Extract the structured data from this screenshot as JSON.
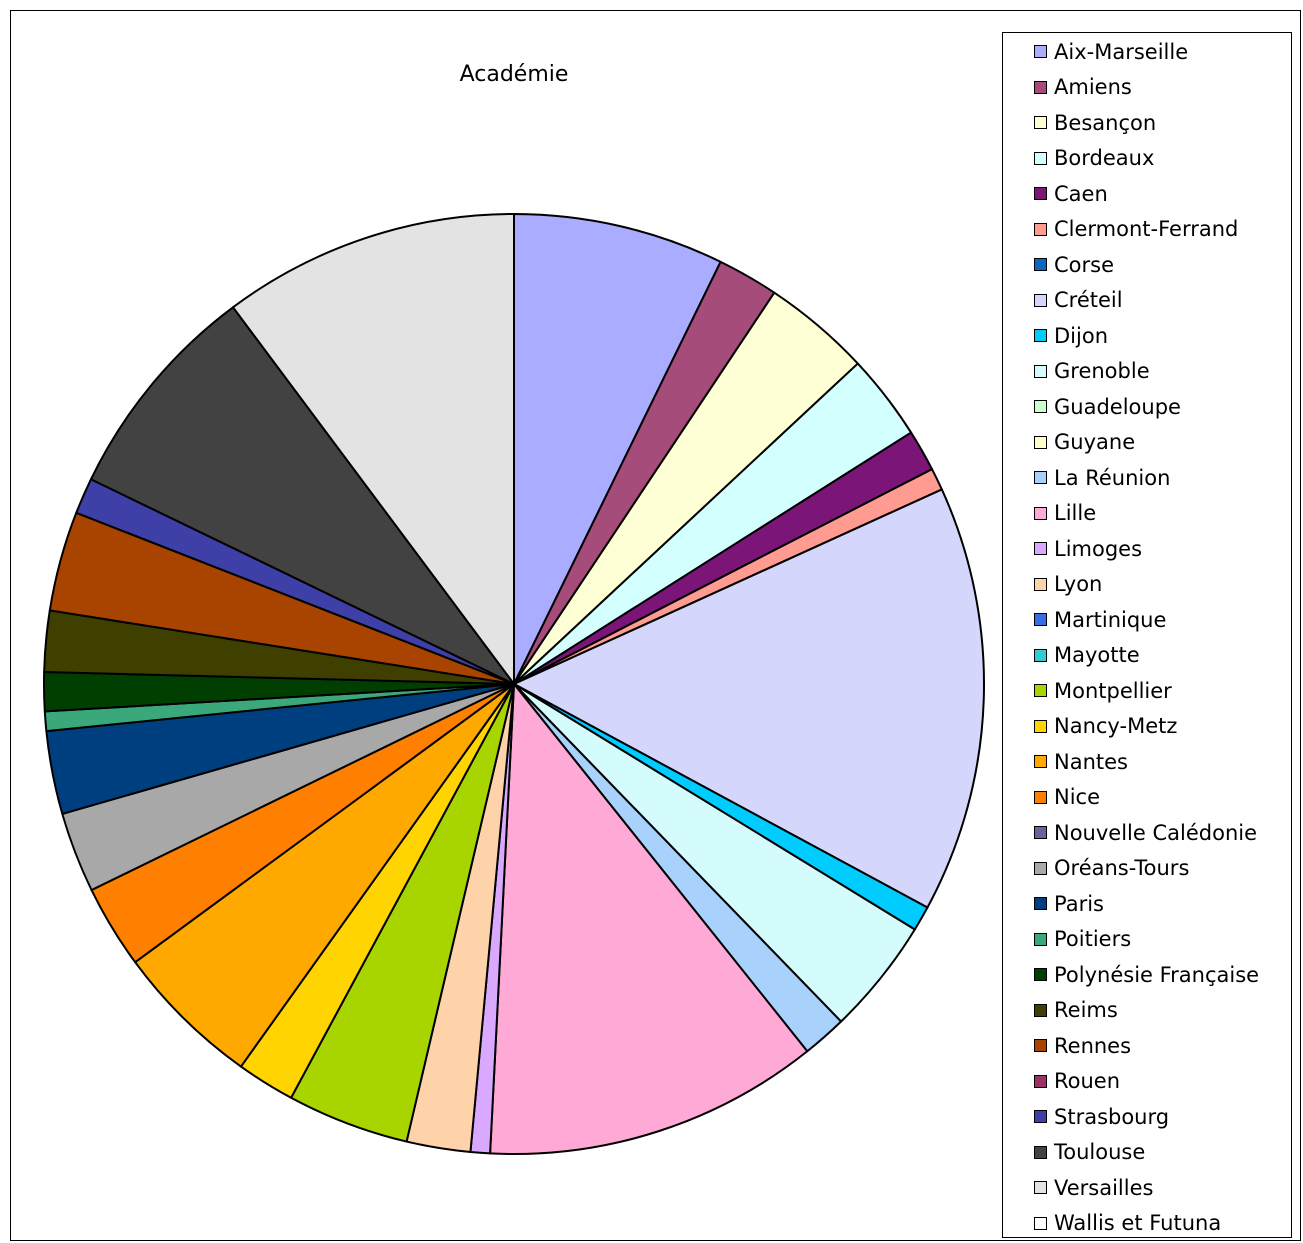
{
  "chart_data": {
    "type": "pie",
    "title": "Académie",
    "legend_position": "right",
    "start_angle": "top, clockwise",
    "series": [
      {
        "name": "Aix-Marseille",
        "value": 7.6,
        "color": "#A9ACFF"
      },
      {
        "name": "Amiens",
        "value": 2.2,
        "color": "#A64C7A"
      },
      {
        "name": "Besançon",
        "value": 3.9,
        "color": "#FFFFD6"
      },
      {
        "name": "Bordeaux",
        "value": 3.1,
        "color": "#D4FFFF"
      },
      {
        "name": "Caen",
        "value": 1.5,
        "color": "#7B1578"
      },
      {
        "name": "Clermont-Ferrand",
        "value": 0.8,
        "color": "#FF9B91"
      },
      {
        "name": "Corse",
        "value": 0.0,
        "color": "#0A68BF"
      },
      {
        "name": "Créteil",
        "value": 15.4,
        "color": "#D5D6FB"
      },
      {
        "name": "Dijon",
        "value": 0.9,
        "color": "#00CCFF"
      },
      {
        "name": "Grenoble",
        "value": 4.2,
        "color": "#D4FCFC"
      },
      {
        "name": "Guadeloupe",
        "value": 0.0,
        "color": "#CCFFCC"
      },
      {
        "name": "Guyane",
        "value": 0.0,
        "color": "#FFFFCC"
      },
      {
        "name": "La Réunion",
        "value": 1.6,
        "color": "#A8D2FC"
      },
      {
        "name": "Lille",
        "value": 12.1,
        "color": "#FFA9D6"
      },
      {
        "name": "Limoges",
        "value": 0.7,
        "color": "#D8A9FF"
      },
      {
        "name": "Lyon",
        "value": 2.3,
        "color": "#FFD3A9"
      },
      {
        "name": "Martinique",
        "value": 0.0,
        "color": "#3A6CE8"
      },
      {
        "name": "Mayotte",
        "value": 0.0,
        "color": "#33CCCC"
      },
      {
        "name": "Montpellier",
        "value": 4.4,
        "color": "#A8D400"
      },
      {
        "name": "Nancy-Metz",
        "value": 2.1,
        "color": "#FFD400"
      },
      {
        "name": "Nantes",
        "value": 5.3,
        "color": "#FFA800"
      },
      {
        "name": "Nice",
        "value": 3.0,
        "color": "#FF7F00"
      },
      {
        "name": "Nouvelle Calédonie",
        "value": 0.0,
        "color": "#666699"
      },
      {
        "name": "Oréans-Tours",
        "value": 2.9,
        "color": "#A8A8A8"
      },
      {
        "name": "Paris",
        "value": 3.0,
        "color": "#003F7F"
      },
      {
        "name": "Poitiers",
        "value": 0.7,
        "color": "#3AA87A"
      },
      {
        "name": "Polynésie Française",
        "value": 1.4,
        "color": "#003F00"
      },
      {
        "name": "Reims",
        "value": 2.2,
        "color": "#3F3F00"
      },
      {
        "name": "Rennes",
        "value": 3.6,
        "color": "#A84400"
      },
      {
        "name": "Rouen",
        "value": 0.0,
        "color": "#993366"
      },
      {
        "name": "Strasbourg",
        "value": 1.3,
        "color": "#3F3FA8"
      },
      {
        "name": "Toulouse",
        "value": 8.0,
        "color": "#424242"
      },
      {
        "name": "Versailles",
        "value": 10.7,
        "color": "#E3E3E3"
      },
      {
        "name": "Wallis et Futuna",
        "value": 0.0,
        "color": "#FFFFFF"
      }
    ]
  }
}
